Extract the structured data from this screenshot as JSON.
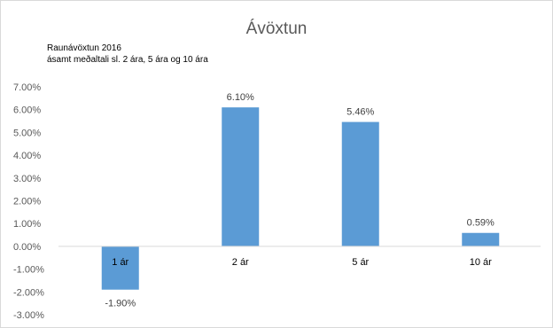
{
  "chart_data": {
    "type": "bar",
    "title": "Ávöxtun",
    "subtitle_lines": [
      "Raunávöxtun 2016",
      "ásamt meðaltali sl. 2 ára, 5 ára og 10 ára"
    ],
    "categories": [
      "1 ár",
      "2 ár",
      "5 ár",
      "10 ár"
    ],
    "values": [
      -1.9,
      6.1,
      5.46,
      0.59
    ],
    "value_labels": [
      "-1.90%",
      "6.10%",
      "5.46%",
      "0.59%"
    ],
    "y_ticks": [
      "7.00%",
      "6.00%",
      "5.00%",
      "4.00%",
      "3.00%",
      "2.00%",
      "1.00%",
      "0.00%",
      "-1.00%",
      "-2.00%",
      "-3.00%"
    ],
    "ylim": [
      -3,
      7
    ],
    "xlabel": "",
    "ylabel": "",
    "grid": false,
    "legend": "none",
    "bar_color": "#5b9bd5"
  }
}
